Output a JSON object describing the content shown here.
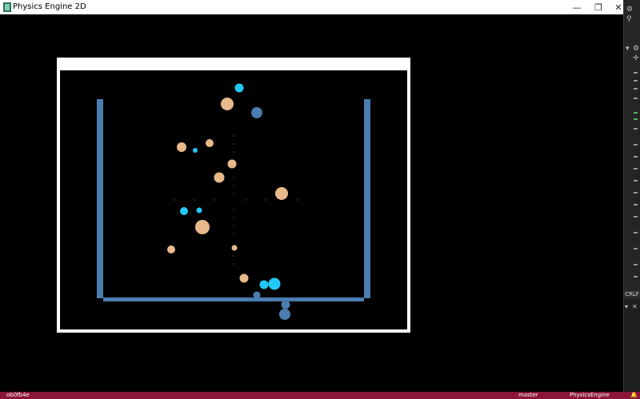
{
  "window": {
    "title": "Physics Engine 2D",
    "controls": {
      "minimize": "—",
      "restore": "❐",
      "close": "✕"
    }
  },
  "ide": {
    "line_ending": "CRLF"
  },
  "statusbar": {
    "left_text": "ob0fb4e",
    "branch": "master",
    "project": "PhysicsEngine"
  },
  "scene": {
    "colors": {
      "frame": "#ffffff",
      "background": "#000000",
      "container": "#4b7db0",
      "ball_peach": "#e8b98a",
      "ball_cyan": "#22c8f5",
      "ball_steel": "#4b7db0",
      "grid_dots": "#5a5a5a"
    }
  }
}
